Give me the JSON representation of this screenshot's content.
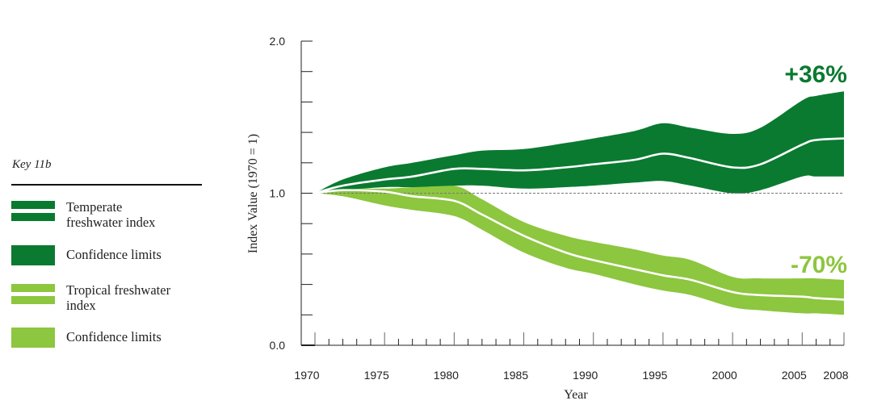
{
  "key": {
    "title": "Key 11b",
    "items": [
      {
        "label": "Temperate freshwater index",
        "lines": [
          "Temperate",
          "freshwater index"
        ],
        "style": "line",
        "color": "#0a7a30"
      },
      {
        "label": "Confidence limits",
        "lines": [
          "Confidence limits"
        ],
        "style": "band",
        "color": "#0a7a30"
      },
      {
        "label": "Tropical freshwater index",
        "lines": [
          "Tropical freshwater",
          "index"
        ],
        "style": "line",
        "color": "#8dc63f"
      },
      {
        "label": "Confidence limits",
        "lines": [
          "Confidence limits"
        ],
        "style": "band",
        "color": "#8dc63f"
      }
    ]
  },
  "chart_data": {
    "type": "area",
    "title": "",
    "xlabel": "Year",
    "ylabel": "Index Value (1970 = 1)",
    "xlim": [
      1970,
      2008
    ],
    "ylim": [
      0,
      2.0
    ],
    "yticks_labeled": [
      "0.0",
      "1.0",
      "2.0"
    ],
    "ytick_values": [
      0.0,
      1.0,
      2.0
    ],
    "ytick_minor_step": 0.2,
    "xtick_labels": [
      "1970",
      "1975",
      "1980",
      "1985",
      "1990",
      "1995",
      "2000",
      "2005",
      "2008"
    ],
    "xtick_values": [
      1970,
      1975,
      1980,
      1985,
      1990,
      1995,
      2000,
      2005,
      2008
    ],
    "reference_line": 1.0,
    "grid": false,
    "legend_position": "left",
    "x": [
      1970,
      1972,
      1975,
      1977,
      1980,
      1982,
      1985,
      1988,
      1990,
      1993,
      1995,
      1997,
      2000,
      2002,
      2005,
      2006,
      2008
    ],
    "series": [
      {
        "name": "Temperate freshwater index",
        "color": "#0a7a30",
        "values": [
          1.0,
          1.05,
          1.09,
          1.11,
          1.16,
          1.16,
          1.15,
          1.17,
          1.19,
          1.22,
          1.26,
          1.23,
          1.17,
          1.19,
          1.32,
          1.35,
          1.36
        ],
        "upper": [
          1.0,
          1.09,
          1.17,
          1.2,
          1.25,
          1.28,
          1.29,
          1.33,
          1.36,
          1.41,
          1.46,
          1.43,
          1.39,
          1.43,
          1.61,
          1.64,
          1.67
        ],
        "lower": [
          1.0,
          1.02,
          1.04,
          1.04,
          1.05,
          1.05,
          1.03,
          1.04,
          1.05,
          1.07,
          1.08,
          1.05,
          1.0,
          1.02,
          1.11,
          1.11,
          1.11
        ],
        "annotation": "+36%"
      },
      {
        "name": "Tropical freshwater index",
        "color": "#8dc63f",
        "values": [
          1.0,
          1.02,
          1.01,
          0.98,
          0.95,
          0.86,
          0.72,
          0.61,
          0.56,
          0.5,
          0.46,
          0.43,
          0.35,
          0.33,
          0.32,
          0.31,
          0.3
        ],
        "upper": [
          1.0,
          1.03,
          1.03,
          1.04,
          1.05,
          0.96,
          0.81,
          0.72,
          0.68,
          0.63,
          0.59,
          0.56,
          0.45,
          0.44,
          0.44,
          0.44,
          0.43
        ],
        "lower": [
          1.0,
          0.98,
          0.92,
          0.89,
          0.85,
          0.76,
          0.61,
          0.51,
          0.47,
          0.4,
          0.36,
          0.33,
          0.25,
          0.23,
          0.21,
          0.21,
          0.2
        ],
        "annotation": "-70%"
      }
    ]
  }
}
